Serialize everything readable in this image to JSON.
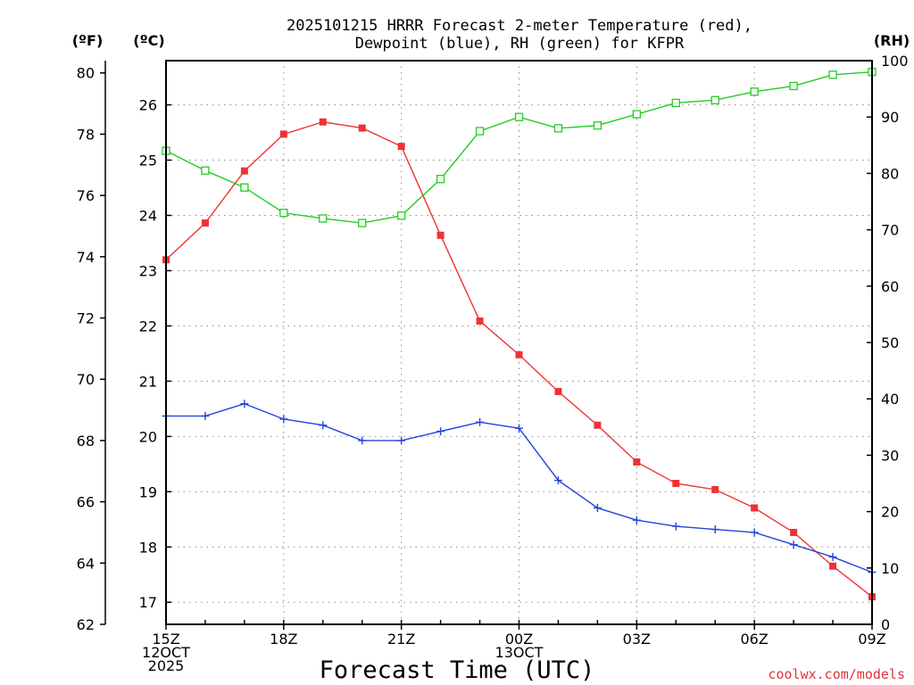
{
  "chart_data": {
    "type": "line",
    "title_lines": [
      "2025101215 HRRR Forecast 2-meter Temperature (red),",
      "Dewpoint (blue), RH (green) for KFPR"
    ],
    "xlabel": "Forecast Time (UTC)",
    "credit": "coolwx.com/models",
    "x_hours": [
      0,
      1,
      2,
      3,
      4,
      5,
      6,
      7,
      8,
      9,
      10,
      11,
      12,
      13,
      14,
      15,
      16,
      17,
      18
    ],
    "x_ticks": [
      {
        "hour": 0,
        "lines": [
          "15Z",
          "12OCT",
          "2025"
        ]
      },
      {
        "hour": 3,
        "lines": [
          "18Z"
        ]
      },
      {
        "hour": 6,
        "lines": [
          "21Z"
        ]
      },
      {
        "hour": 9,
        "lines": [
          "00Z",
          "13OCT"
        ]
      },
      {
        "hour": 12,
        "lines": [
          "03Z"
        ]
      },
      {
        "hour": 15,
        "lines": [
          "06Z"
        ]
      },
      {
        "hour": 18,
        "lines": [
          "09Z"
        ]
      }
    ],
    "axes": {
      "fahrenheit": {
        "label": "(ºF)",
        "ticks": [
          62,
          64,
          66,
          68,
          70,
          72,
          74,
          76,
          78,
          80
        ],
        "range": [
          62,
          80.4
        ]
      },
      "celsius": {
        "label": "(ºC)",
        "ticks": [
          17,
          18,
          19,
          20,
          21,
          22,
          23,
          24,
          25,
          26
        ],
        "range": [
          16.6,
          26.8
        ]
      },
      "rh": {
        "label": "(RH)",
        "ticks": [
          0,
          10,
          20,
          30,
          40,
          50,
          60,
          70,
          80,
          90,
          100
        ],
        "range": [
          0,
          100
        ]
      }
    },
    "series": [
      {
        "name": "2-meter Temperature",
        "unit": "F",
        "color": "#ee3333",
        "marker": "filled-square",
        "values": [
          73.9,
          75.1,
          76.8,
          78.0,
          78.4,
          78.2,
          77.6,
          74.7,
          71.9,
          70.8,
          69.6,
          68.5,
          67.3,
          66.6,
          66.4,
          65.8,
          65.0,
          63.9,
          62.9
        ]
      },
      {
        "name": "Dewpoint",
        "unit": "F",
        "color": "#2244dd",
        "marker": "plus",
        "values": [
          68.8,
          68.8,
          69.2,
          68.7,
          68.5,
          68.0,
          68.0,
          68.3,
          68.6,
          68.4,
          66.7,
          65.8,
          65.4,
          65.2,
          65.1,
          65.0,
          64.6,
          64.2,
          63.7
        ]
      },
      {
        "name": "RH",
        "unit": "%",
        "color": "#22cc22",
        "marker": "open-square",
        "values": [
          84,
          80.5,
          77.5,
          73,
          72,
          71.2,
          72.5,
          79,
          87.5,
          90,
          88,
          88.5,
          90.5,
          92.5,
          93,
          94.5,
          95.5,
          97.5,
          98
        ]
      }
    ]
  }
}
